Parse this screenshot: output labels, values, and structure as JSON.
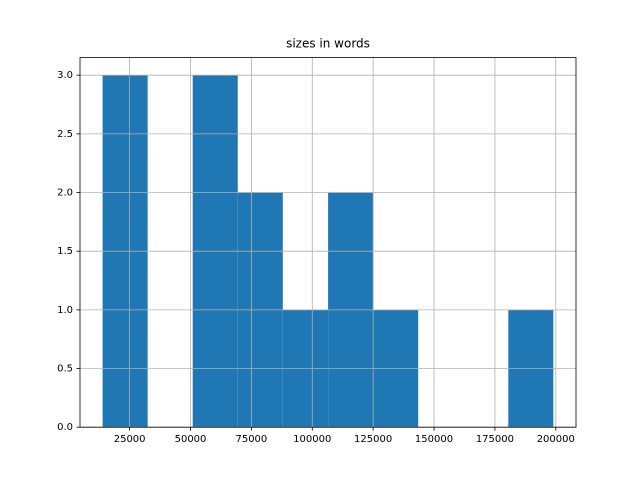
{
  "chart_data": {
    "type": "histogram",
    "title": "sizes in words",
    "bins": [
      13900,
      32400,
      50900,
      69400,
      87900,
      106500,
      125000,
      143500,
      162000,
      180500,
      199000
    ],
    "counts": [
      3,
      0,
      3,
      2,
      1,
      2,
      1,
      0,
      0,
      1
    ],
    "color": "#1f77b4",
    "xlim": [
      4620,
      208300
    ],
    "xticks": [
      25000,
      50000,
      75000,
      100000,
      125000,
      150000,
      175000,
      200000
    ],
    "ylim": [
      0,
      3.15
    ],
    "yticks": [
      {
        "value": 0,
        "label": "0.0"
      },
      {
        "value": 0.5,
        "label": "0.5"
      },
      {
        "value": 1,
        "label": "1.0"
      },
      {
        "value": 1.5,
        "label": "1.5"
      },
      {
        "value": 2,
        "label": "2.0"
      },
      {
        "value": 2.5,
        "label": "2.5"
      },
      {
        "value": 3,
        "label": "3.0"
      }
    ],
    "grid": true
  }
}
